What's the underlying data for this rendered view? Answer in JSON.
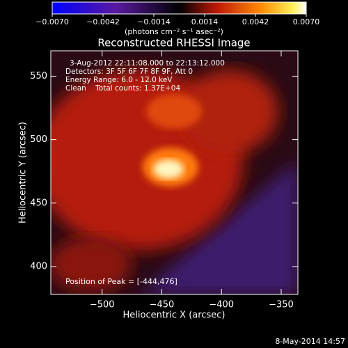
{
  "chart_data": {
    "type": "image",
    "title": "Reconstructed RHESSI Image",
    "xlabel": "Heliocentric X (arcsec)",
    "ylabel": "Heliocentric Y (arcsec)",
    "xlim": [
      -543,
      -336
    ],
    "ylim": [
      378,
      570
    ],
    "xticks": [
      {
        "value": -500,
        "label": "−500"
      },
      {
        "value": -450,
        "label": "−450"
      },
      {
        "value": -400,
        "label": "−400"
      },
      {
        "value": -350,
        "label": "−350"
      }
    ],
    "yticks": [
      400,
      450,
      500,
      550
    ],
    "colorbar": {
      "label": "(photons cm⁻² s⁻¹ asec⁻²)",
      "lim": [
        -0.007,
        0.007
      ],
      "ticks": [
        {
          "value": -0.007,
          "label": "−0.0070"
        },
        {
          "value": -0.0042,
          "label": "−0.0042"
        },
        {
          "value": -0.0014,
          "label": "−0.0014"
        },
        {
          "value": 0.0014,
          "label": "0.0014"
        },
        {
          "value": 0.0042,
          "label": "0.0042"
        },
        {
          "value": 0.007,
          "label": "0.0070"
        }
      ]
    },
    "annotations": [
      "3-Aug-2012 22:11:08.000 to 22:13:12.000",
      "Detectors: 3F 5F 6F 7F 8F 9F, Att 0",
      "Energy Range: 6.0 - 12.0 keV",
      "Clean    Total counts: 1.37E+04"
    ],
    "peak_note": "Position of Peak = [-444,476]",
    "timestamp": "8-May-2014 14:57"
  }
}
